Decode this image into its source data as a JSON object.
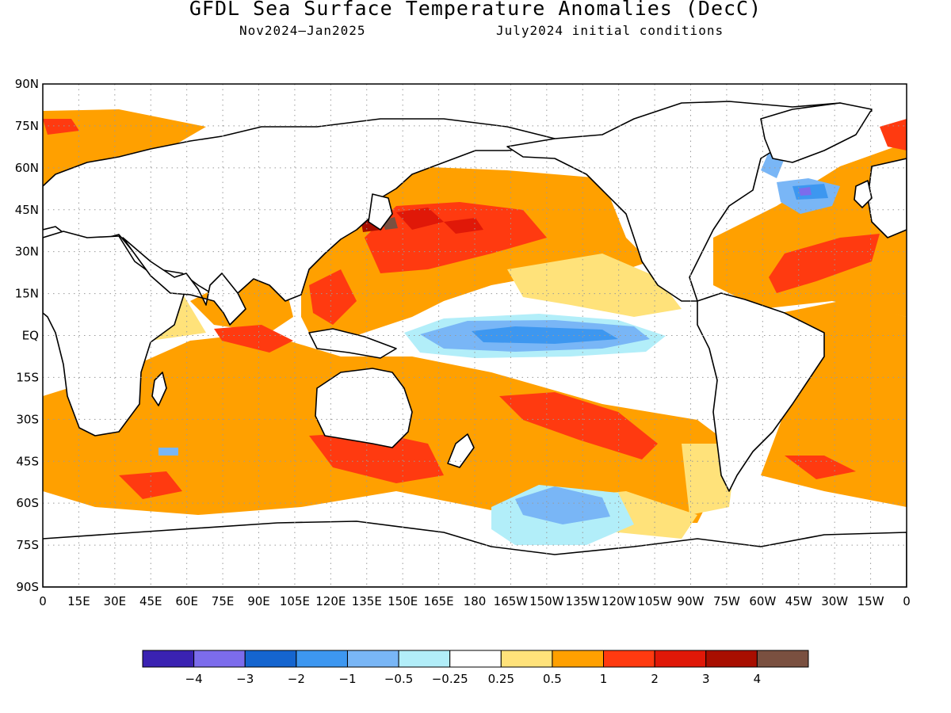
{
  "title": "GFDL Sea Surface Temperature Anomalies (DecC)",
  "subtitle_left": "Nov2024–Jan2025",
  "subtitle_right": "July2024 initial conditions",
  "lat_labels": [
    "90N",
    "75N",
    "60N",
    "45N",
    "30N",
    "15N",
    "EQ",
    "15S",
    "30S",
    "45S",
    "60S",
    "75S",
    "90S"
  ],
  "lon_labels": [
    "0",
    "15E",
    "30E",
    "45E",
    "60E",
    "75E",
    "90E",
    "105E",
    "120E",
    "135E",
    "150E",
    "165E",
    "180",
    "165W",
    "150W",
    "135W",
    "120W",
    "105W",
    "90W",
    "75W",
    "60W",
    "45W",
    "30W",
    "15W",
    "0"
  ],
  "colorbar": {
    "colors": [
      "#3a22b2",
      "#7c6cec",
      "#1565cf",
      "#3d97f0",
      "#79b6f6",
      "#b2eef9",
      "#ffffff",
      "#ffe27a",
      "#ffa000",
      "#ff3a10",
      "#e01808",
      "#a80e00",
      "#7a5040"
    ],
    "tick_labels": [
      "−4",
      "−3",
      "−2",
      "−1",
      "−0.5",
      "−0.25",
      "0.25",
      "0.5",
      "1",
      "2",
      "3",
      "4"
    ]
  },
  "colors": {
    "land": "#ffffff",
    "coast": "#000000",
    "grid": "#9a9a9a"
  }
}
